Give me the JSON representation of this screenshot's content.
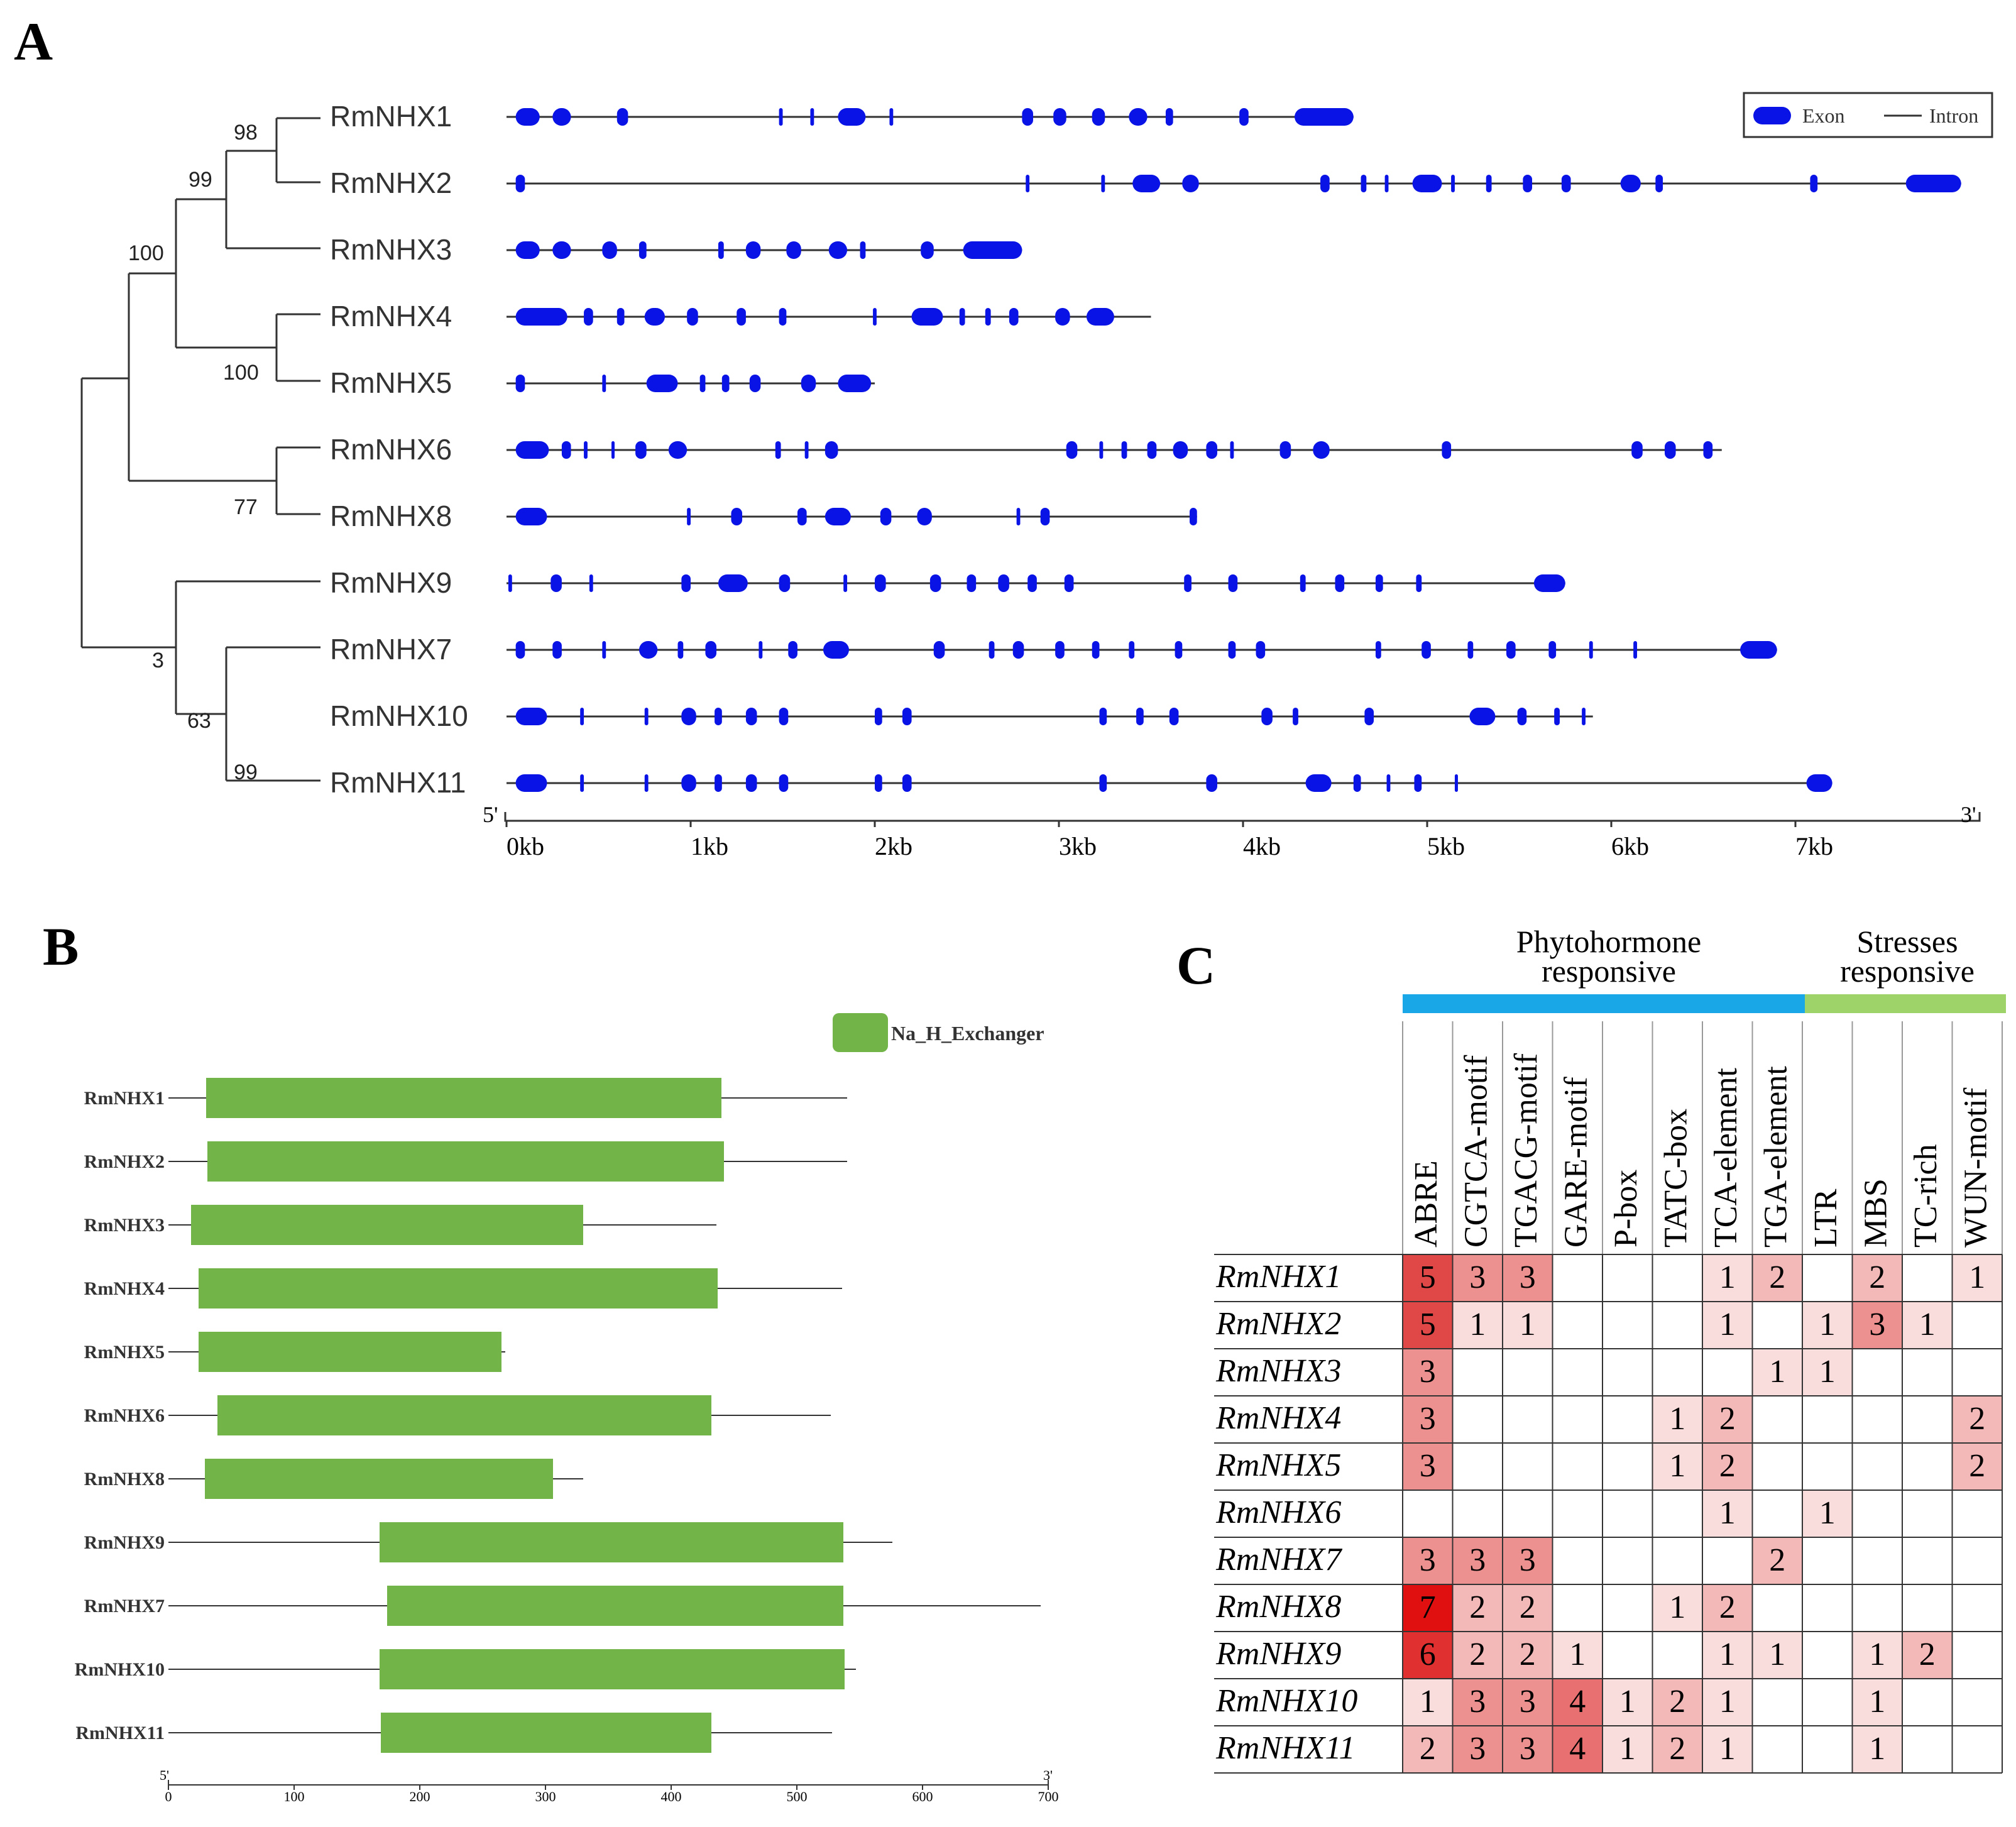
{
  "panels": {
    "a": "A",
    "b": "B",
    "c": "C"
  },
  "panel_a": {
    "genes": [
      "RmNHX1",
      "RmNHX2",
      "RmNHX3",
      "RmNHX4",
      "RmNHX5",
      "RmNHX6",
      "RmNHX8",
      "RmNHX9",
      "RmNHX7",
      "RmNHX10",
      "RmNHX11"
    ],
    "bootstrap": [
      "98",
      "99",
      "100",
      "100",
      "77",
      "3",
      "63",
      "99"
    ],
    "legend": {
      "exon": "Exon",
      "intron": "Intron"
    },
    "axis": {
      "five": "5'",
      "three": "3'",
      "ticks": [
        "0kb",
        "1kb",
        "2kb",
        "3kb",
        "4kb",
        "5kb",
        "6kb",
        "7kb"
      ]
    },
    "gene_lengths_kb": [
      4.6,
      7.9,
      2.8,
      3.5,
      2.0,
      6.6,
      3.75,
      5.75,
      6.9,
      5.9,
      7.2
    ],
    "exons_kb": [
      [
        [
          0.05,
          0.18
        ],
        [
          0.25,
          0.35
        ],
        [
          0.6,
          0.66
        ],
        [
          1.48,
          1.5
        ],
        [
          1.65,
          1.67
        ],
        [
          1.8,
          1.95
        ],
        [
          2.08,
          2.1
        ],
        [
          2.8,
          2.86
        ],
        [
          2.97,
          3.04
        ],
        [
          3.18,
          3.25
        ],
        [
          3.38,
          3.48
        ],
        [
          3.58,
          3.62
        ],
        [
          3.98,
          4.03
        ],
        [
          4.28,
          4.6
        ]
      ],
      [
        [
          0.05,
          0.1
        ],
        [
          2.82,
          2.84
        ],
        [
          3.23,
          3.25
        ],
        [
          3.4,
          3.55
        ],
        [
          3.67,
          3.76
        ],
        [
          4.42,
          4.47
        ],
        [
          4.64,
          4.67
        ],
        [
          4.77,
          4.79
        ],
        [
          4.92,
          5.08
        ],
        [
          5.13,
          5.15
        ],
        [
          5.32,
          5.35
        ],
        [
          5.52,
          5.57
        ],
        [
          5.73,
          5.78
        ],
        [
          6.05,
          6.16
        ],
        [
          6.24,
          6.28
        ],
        [
          7.08,
          7.12
        ],
        [
          7.6,
          7.9
        ]
      ],
      [
        [
          0.05,
          0.18
        ],
        [
          0.25,
          0.35
        ],
        [
          0.52,
          0.6
        ],
        [
          0.72,
          0.76
        ],
        [
          1.15,
          1.18
        ],
        [
          1.3,
          1.38
        ],
        [
          1.52,
          1.6
        ],
        [
          1.75,
          1.85
        ],
        [
          1.92,
          1.95
        ],
        [
          2.25,
          2.32
        ],
        [
          2.48,
          2.8
        ]
      ],
      [
        [
          0.05,
          0.33
        ],
        [
          0.42,
          0.47
        ],
        [
          0.6,
          0.64
        ],
        [
          0.75,
          0.86
        ],
        [
          0.98,
          1.04
        ],
        [
          1.25,
          1.3
        ],
        [
          1.48,
          1.52
        ],
        [
          1.99,
          2.01
        ],
        [
          2.2,
          2.37
        ],
        [
          2.46,
          2.49
        ],
        [
          2.6,
          2.63
        ],
        [
          2.73,
          2.78
        ],
        [
          2.98,
          3.06
        ],
        [
          3.15,
          3.3
        ]
      ],
      [
        [
          0.05,
          0.1
        ],
        [
          0.52,
          0.54
        ],
        [
          0.76,
          0.93
        ],
        [
          1.05,
          1.08
        ],
        [
          1.17,
          1.21
        ],
        [
          1.32,
          1.38
        ],
        [
          1.6,
          1.68
        ],
        [
          1.8,
          1.98
        ]
      ],
      [
        [
          0.05,
          0.23
        ],
        [
          0.3,
          0.35
        ],
        [
          0.42,
          0.44
        ],
        [
          0.57,
          0.58
        ],
        [
          0.7,
          0.76
        ],
        [
          0.88,
          0.98
        ],
        [
          1.46,
          1.49
        ],
        [
          1.62,
          1.64
        ],
        [
          1.73,
          1.8
        ],
        [
          3.04,
          3.1
        ],
        [
          3.22,
          3.24
        ],
        [
          3.34,
          3.37
        ],
        [
          3.48,
          3.53
        ],
        [
          3.62,
          3.7
        ],
        [
          3.8,
          3.86
        ],
        [
          3.93,
          3.95
        ],
        [
          4.2,
          4.26
        ],
        [
          4.38,
          4.47
        ],
        [
          5.08,
          5.13
        ],
        [
          6.11,
          6.17
        ],
        [
          6.29,
          6.35
        ],
        [
          6.5,
          6.55
        ]
      ],
      [
        [
          0.05,
          0.22
        ],
        [
          0.98,
          1.0
        ],
        [
          1.22,
          1.28
        ],
        [
          1.58,
          1.63
        ],
        [
          1.73,
          1.87
        ],
        [
          2.03,
          2.09
        ],
        [
          2.23,
          2.31
        ],
        [
          2.77,
          2.79
        ],
        [
          2.9,
          2.95
        ],
        [
          3.71,
          3.75
        ]
      ],
      [
        [
          0.01,
          0.03
        ],
        [
          0.24,
          0.3
        ],
        [
          0.45,
          0.47
        ],
        [
          0.95,
          1.0
        ],
        [
          1.15,
          1.31
        ],
        [
          1.48,
          1.54
        ],
        [
          1.83,
          1.85
        ],
        [
          2.0,
          2.06
        ],
        [
          2.3,
          2.36
        ],
        [
          2.5,
          2.55
        ],
        [
          2.67,
          2.73
        ],
        [
          2.83,
          2.88
        ],
        [
          3.03,
          3.08
        ],
        [
          3.68,
          3.72
        ],
        [
          3.92,
          3.97
        ],
        [
          4.31,
          4.34
        ],
        [
          4.5,
          4.55
        ],
        [
          4.72,
          4.76
        ],
        [
          4.94,
          4.97
        ],
        [
          5.58,
          5.75
        ]
      ],
      [
        [
          0.05,
          0.1
        ],
        [
          0.25,
          0.3
        ],
        [
          0.52,
          0.54
        ],
        [
          0.72,
          0.82
        ],
        [
          0.93,
          0.96
        ],
        [
          1.08,
          1.14
        ],
        [
          1.37,
          1.39
        ],
        [
          1.53,
          1.58
        ],
        [
          1.72,
          1.86
        ],
        [
          2.32,
          2.38
        ],
        [
          2.62,
          2.65
        ],
        [
          2.75,
          2.81
        ],
        [
          2.98,
          3.03
        ],
        [
          3.18,
          3.22
        ],
        [
          3.38,
          3.41
        ],
        [
          3.63,
          3.67
        ],
        [
          3.92,
          3.96
        ],
        [
          4.07,
          4.12
        ],
        [
          4.72,
          4.75
        ],
        [
          4.97,
          5.02
        ],
        [
          5.22,
          5.25
        ],
        [
          5.43,
          5.48
        ],
        [
          5.66,
          5.7
        ],
        [
          5.88,
          5.9
        ],
        [
          6.12,
          6.14
        ],
        [
          6.7,
          6.9
        ]
      ],
      [
        [
          0.05,
          0.22
        ],
        [
          0.4,
          0.42
        ],
        [
          0.75,
          0.77
        ],
        [
          0.95,
          1.03
        ],
        [
          1.13,
          1.17
        ],
        [
          1.3,
          1.36
        ],
        [
          1.48,
          1.53
        ],
        [
          2.0,
          2.04
        ],
        [
          2.15,
          2.2
        ],
        [
          3.22,
          3.26
        ],
        [
          3.42,
          3.46
        ],
        [
          3.6,
          3.65
        ],
        [
          4.1,
          4.16
        ],
        [
          4.27,
          4.3
        ],
        [
          4.66,
          4.71
        ],
        [
          5.23,
          5.37
        ],
        [
          5.49,
          5.54
        ],
        [
          5.69,
          5.72
        ],
        [
          5.84,
          5.86
        ]
      ],
      [
        [
          0.05,
          0.22
        ],
        [
          0.4,
          0.42
        ],
        [
          0.75,
          0.77
        ],
        [
          0.95,
          1.03
        ],
        [
          1.13,
          1.17
        ],
        [
          1.3,
          1.36
        ],
        [
          1.48,
          1.53
        ],
        [
          2.0,
          2.04
        ],
        [
          2.15,
          2.2
        ],
        [
          3.22,
          3.26
        ],
        [
          3.8,
          3.86
        ],
        [
          4.34,
          4.48
        ],
        [
          4.6,
          4.64
        ],
        [
          4.78,
          4.8
        ],
        [
          4.93,
          4.97
        ],
        [
          5.15,
          5.16
        ],
        [
          7.06,
          7.2
        ]
      ]
    ]
  },
  "panel_b": {
    "legend": "Na_H_Exchanger",
    "genes": [
      "RmNHX1",
      "RmNHX2",
      "RmNHX3",
      "RmNHX4",
      "RmNHX5",
      "RmNHX6",
      "RmNHX8",
      "RmNHX9",
      "RmNHX7",
      "RmNHX10",
      "RmNHX11"
    ],
    "protein_lengths_aa": [
      540,
      540,
      436,
      536,
      268,
      527,
      330,
      576,
      694,
      547,
      528
    ],
    "domains_aa": [
      [
        30,
        440
      ],
      [
        31,
        442
      ],
      [
        18,
        330
      ],
      [
        24,
        437
      ],
      [
        24,
        265
      ],
      [
        39,
        432
      ],
      [
        29,
        306
      ],
      [
        168,
        537
      ],
      [
        174,
        537
      ],
      [
        168,
        538
      ],
      [
        169,
        432
      ]
    ],
    "axis": {
      "five": "5'",
      "three": "3'",
      "ticks": [
        "0",
        "100",
        "200",
        "300",
        "400",
        "500",
        "600",
        "700"
      ]
    }
  },
  "panel_c": {
    "group_labels": [
      {
        "line1": "Phytohormone",
        "line2": "responsive",
        "color": "#1aa7e8"
      },
      {
        "line1": "Stresses",
        "line2": "responsive",
        "color": "#9ed36a"
      }
    ],
    "columns": [
      "ABRE",
      "CGTCA-motif",
      "TGACG-motif",
      "GARE-motif",
      "P-box",
      "TATC-box",
      "TCA-element",
      "TGA-element",
      "LTR",
      "MBS",
      "TC-rich",
      "WUN-motif"
    ],
    "rows": [
      "RmNHX1",
      "RmNHX2",
      "RmNHX3",
      "RmNHX4",
      "RmNHX5",
      "RmNHX6",
      "RmNHX7",
      "RmNHX8",
      "RmNHX9",
      "RmNHX10",
      "RmNHX11"
    ],
    "values": [
      [
        "5",
        "3",
        "3",
        "",
        "",
        "",
        "1",
        "2",
        "",
        "2",
        "",
        "1"
      ],
      [
        "5",
        "1",
        "1",
        "",
        "",
        "",
        "1",
        "",
        "1",
        "3",
        "1",
        ""
      ],
      [
        "3",
        "",
        "",
        "",
        "",
        "",
        "",
        "1",
        "1",
        "",
        "",
        ""
      ],
      [
        "3",
        "",
        "",
        "",
        "",
        "1",
        "2",
        "",
        "",
        "",
        "",
        "2"
      ],
      [
        "3",
        "",
        "",
        "",
        "",
        "1",
        "2",
        "",
        "",
        "",
        "",
        "2"
      ],
      [
        "",
        "",
        "",
        "",
        "",
        "",
        "1",
        "",
        "1",
        "",
        "",
        ""
      ],
      [
        "3",
        "3",
        "3",
        "",
        "",
        "",
        "",
        "2",
        "",
        "",
        "",
        ""
      ],
      [
        "7",
        "2",
        "2",
        "",
        "",
        "1",
        "2",
        "",
        "",
        "",
        "",
        ""
      ],
      [
        "6",
        "2",
        "2",
        "1",
        "",
        "",
        "1",
        "1",
        "",
        "1",
        "2",
        ""
      ],
      [
        "1",
        "3",
        "3",
        "4",
        "1",
        "2",
        "1",
        "",
        "",
        "1",
        "",
        ""
      ],
      [
        "2",
        "3",
        "3",
        "4",
        "1",
        "2",
        "1",
        "",
        "",
        "1",
        "",
        ""
      ]
    ]
  }
}
